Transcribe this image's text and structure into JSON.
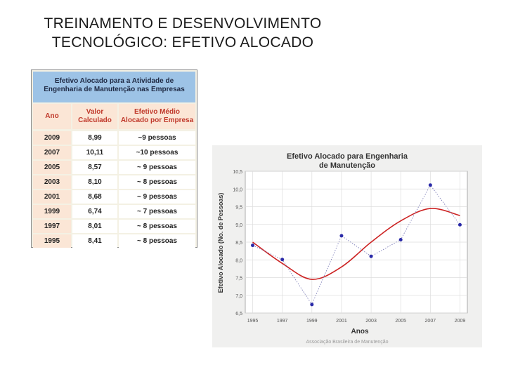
{
  "slide": {
    "title_line1": "TREINAMENTO E DESENVOLVIMENTO",
    "title_line2": "TECNOLÓGICO: EFETIVO ALOCADO"
  },
  "table": {
    "title_line1": "Efetivo Alocado para a Atividade de",
    "title_line2": "Engenharia de Manutenção nas Empresas",
    "headers": {
      "year": "Ano",
      "value_l1": "Valor",
      "value_l2": "Calculado",
      "eff_l1": "Efetivo Médio",
      "eff_l2": "Alocado por Empresa"
    },
    "rows": [
      {
        "year": "2009",
        "value": "8,99",
        "effective": "~9 pessoas"
      },
      {
        "year": "2007",
        "value": "10,11",
        "effective": "~10 pessoas"
      },
      {
        "year": "2005",
        "value": "8,57",
        "effective": "~ 9 pessoas"
      },
      {
        "year": "2003",
        "value": "8,10",
        "effective": "~ 8 pessoas"
      },
      {
        "year": "2001",
        "value": "8,68",
        "effective": "~ 9 pessoas"
      },
      {
        "year": "1999",
        "value": "6,74",
        "effective": "~ 7 pessoas"
      },
      {
        "year": "1997",
        "value": "8,01",
        "effective": "~ 8 pessoas"
      },
      {
        "year": "1995",
        "value": "8,41",
        "effective": "~ 8 pessoas"
      }
    ]
  },
  "chart_data": {
    "type": "line",
    "title": "Efetivo Alocado para Engenharia de Manutenção",
    "title_line1": "Efetivo Alocado para Engenharia",
    "title_line2": "de Manutenção",
    "xlabel": "Anos",
    "ylabel": "Efetivo Alocado (No. de Pessoas)",
    "source": "Associação Brasileira de Manutenção",
    "x": [
      1995,
      1997,
      1999,
      2001,
      2003,
      2005,
      2007,
      2009
    ],
    "xticks": [
      "1995",
      "1997",
      "1999",
      "2001",
      "2003",
      "2005",
      "2007",
      "2009"
    ],
    "ylim": [
      6.5,
      10.5
    ],
    "yticks": [
      "6,5",
      "7,0",
      "7,5",
      "8,0",
      "8,5",
      "9,0",
      "9,5",
      "10,0",
      "10,5"
    ],
    "series": [
      {
        "values": [
          8.41,
          8.01,
          6.74,
          8.68,
          8.1,
          8.57,
          10.11,
          8.99
        ],
        "style": "dotted",
        "color": "#2a2aa8"
      },
      {
        "values": [
          8.5,
          7.9,
          7.45,
          7.8,
          8.5,
          9.1,
          9.45,
          9.25
        ],
        "style": "smooth-fit",
        "color": "#cc2222"
      }
    ],
    "grid": true
  }
}
